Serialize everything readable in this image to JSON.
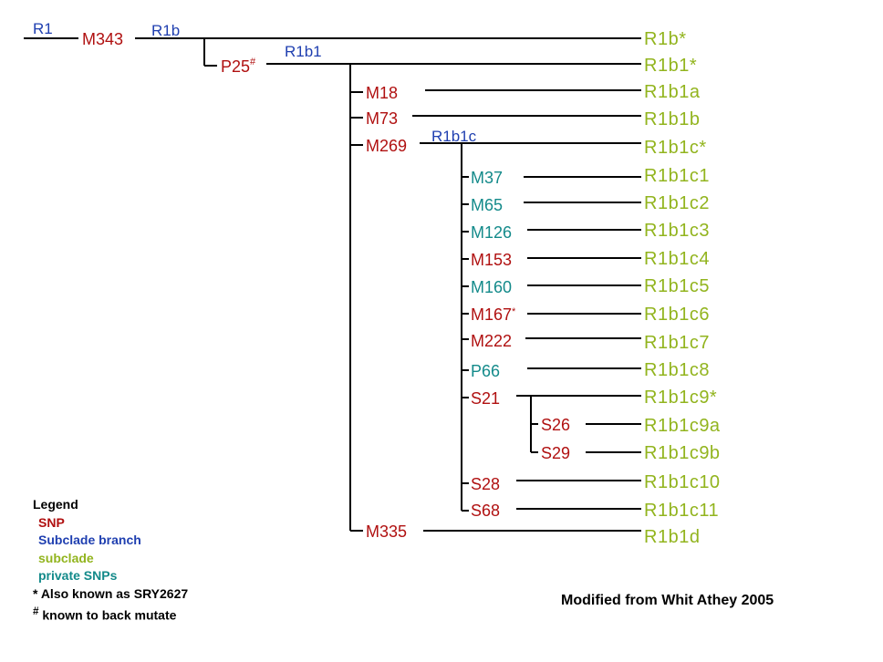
{
  "tree": {
    "branches": {
      "r1": "R1",
      "r1b": "R1b",
      "r1b1": "R1b1",
      "r1b1c": "R1b1c"
    },
    "snps": {
      "m343": "M343",
      "p25": "P25",
      "p25_mark": "#",
      "m18": "M18",
      "m73": "M73",
      "m269": "M269",
      "m37": "M37",
      "m65": "M65",
      "m126": "M126",
      "m153": "M153",
      "m160": "M160",
      "m167": "M167",
      "m167_mark": "*",
      "m222": "M222",
      "p66": "P66",
      "s21": "S21",
      "s26": "S26",
      "s29": "S29",
      "s28": "S28",
      "s68": "S68",
      "m335": "M335"
    },
    "subclades": {
      "r1b_star": "R1b*",
      "r1b1_star": "R1b1*",
      "r1b1a": "R1b1a",
      "r1b1b": "R1b1b",
      "r1b1c_star": "R1b1c*",
      "r1b1c1": "R1b1c1",
      "r1b1c2": "R1b1c2",
      "r1b1c3": "R1b1c3",
      "r1b1c4": "R1b1c4",
      "r1b1c5": "R1b1c5",
      "r1b1c6": "R1b1c6",
      "r1b1c7": "R1b1c7",
      "r1b1c8": "R1b1c8",
      "r1b1c9_star": "R1b1c9*",
      "r1b1c9a": "R1b1c9a",
      "r1b1c9b": "R1b1c9b",
      "r1b1c10": "R1b1c10",
      "r1b1c11": "R1b1c11",
      "r1b1d": "R1b1d"
    }
  },
  "legend": {
    "title": "Legend",
    "snp": "SNP",
    "branch": "Subclade branch",
    "subclade": "subclade",
    "private": "private SNPs",
    "note1": "* Also known as SRY2627",
    "note2_mark": "#",
    "note2": " known to back mutate"
  },
  "credit": "Modified from Whit Athey 2005",
  "colors": {
    "snp": "#b01010",
    "branch": "#1f3fb0",
    "subclade": "#92b41e",
    "private": "#138a8a"
  }
}
